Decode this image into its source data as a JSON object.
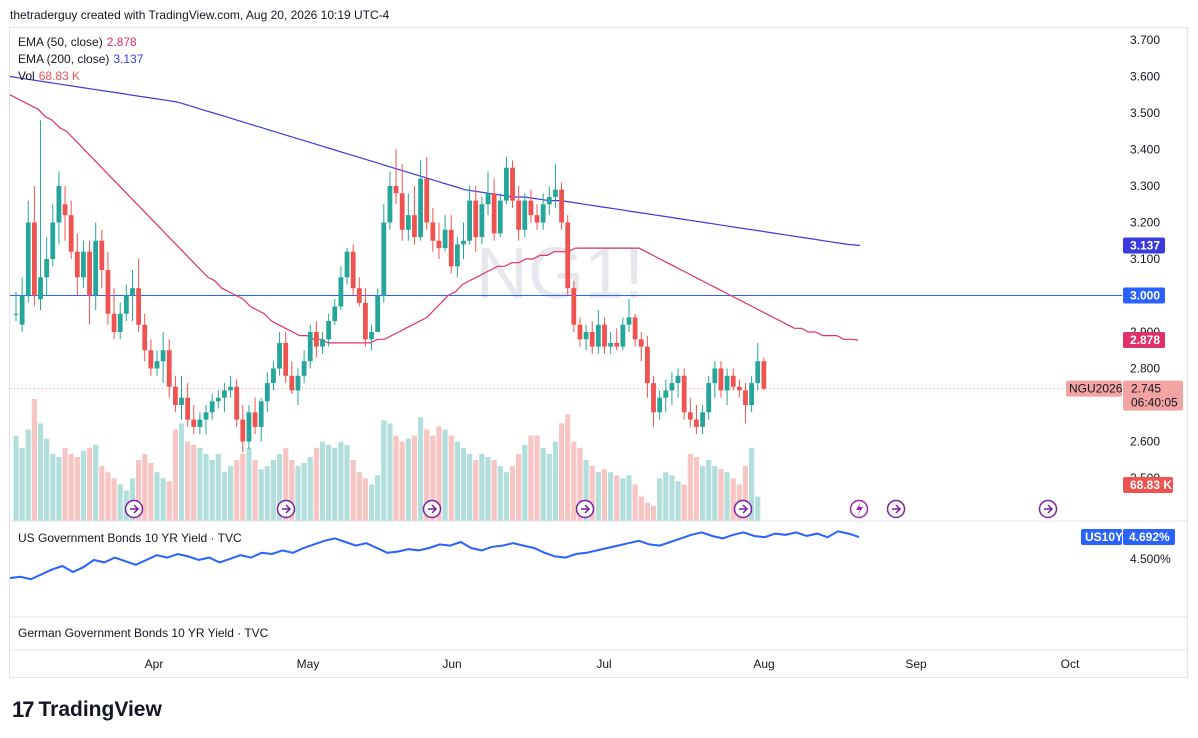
{
  "header": {
    "text": "thetraderguy created with TradingView.com, Aug 20, 2026 10:19 UTC-4"
  },
  "watermark": "NG1!",
  "legend": {
    "ema50": {
      "label": "EMA (50, close)",
      "value": "2.878",
      "color": "#e0306a"
    },
    "ema200": {
      "label": "EMA (200, close)",
      "value": "3.137",
      "color": "#3a3ae0"
    },
    "vol": {
      "label": "Vol",
      "value": "68.83 K",
      "color": "#ef5350"
    }
  },
  "price_axis": {
    "ticks": [
      "3.700",
      "3.600",
      "3.500",
      "3.400",
      "3.300",
      "3.200",
      "3.100",
      "3.000",
      "2.900",
      "2.800",
      "2.700",
      "2.600",
      "2.500"
    ]
  },
  "badges": {
    "ema200": "3.137",
    "level": "3.000",
    "ema50": "2.878",
    "symbol": "NGU2026",
    "price": "2.745",
    "countdown": "06:40:05",
    "vol": "68.83 K"
  },
  "pane2": {
    "title": "US Government Bonds 10 YR Yield · TVC",
    "symbol": "US10Y",
    "value": "4.692%",
    "tick": "4.500%"
  },
  "pane3": {
    "title": "German Government Bonds 10 YR Yield · TVC"
  },
  "time_axis": {
    "labels": [
      "Apr",
      "May",
      "Jun",
      "Jul",
      "Aug",
      "Sep",
      "Oct"
    ]
  },
  "brand": "TradingView",
  "colors": {
    "up": "#26a69a",
    "down": "#ef5350",
    "upVol": "#b2dfdb",
    "downVol": "#f7c5c3",
    "ema50": "#e0306a",
    "ema200": "#3a3ae0",
    "level": "#2962ff",
    "yield": "#2962ff"
  },
  "chart_data": {
    "type": "candlestick",
    "hline": 3.0,
    "ylim": [
      2.47,
      3.74
    ],
    "candles": [
      [
        2.95,
        3.01,
        2.93,
        2.95
      ],
      [
        2.92,
        3.05,
        2.9,
        3.0
      ],
      [
        3.0,
        3.26,
        2.98,
        3.2
      ],
      [
        3.2,
        3.3,
        2.97,
        3.0
      ],
      [
        2.99,
        3.48,
        2.96,
        3.05
      ],
      [
        3.05,
        3.16,
        3.0,
        3.1
      ],
      [
        3.1,
        3.25,
        3.08,
        3.2
      ],
      [
        3.2,
        3.34,
        3.14,
        3.3
      ],
      [
        3.25,
        3.3,
        3.15,
        3.22
      ],
      [
        3.22,
        3.26,
        3.1,
        3.12
      ],
      [
        3.12,
        3.17,
        3.0,
        3.05
      ],
      [
        3.05,
        3.15,
        3.02,
        3.12
      ],
      [
        3.12,
        3.15,
        2.92,
        3.0
      ],
      [
        3.0,
        3.2,
        2.96,
        3.15
      ],
      [
        3.15,
        3.18,
        3.02,
        3.07
      ],
      [
        3.07,
        3.12,
        2.92,
        2.95
      ],
      [
        2.95,
        3.02,
        2.88,
        2.9
      ],
      [
        2.9,
        2.98,
        2.88,
        2.95
      ],
      [
        2.95,
        3.03,
        2.93,
        3.0
      ],
      [
        3.0,
        3.07,
        2.93,
        3.02
      ],
      [
        3.02,
        3.1,
        2.9,
        2.92
      ],
      [
        2.92,
        2.95,
        2.82,
        2.85
      ],
      [
        2.85,
        2.88,
        2.78,
        2.8
      ],
      [
        2.8,
        2.85,
        2.78,
        2.82
      ],
      [
        2.82,
        2.9,
        2.76,
        2.85
      ],
      [
        2.85,
        2.88,
        2.72,
        2.75
      ],
      [
        2.75,
        2.78,
        2.68,
        2.7
      ],
      [
        2.7,
        2.78,
        2.66,
        2.72
      ],
      [
        2.72,
        2.76,
        2.64,
        2.66
      ],
      [
        2.66,
        2.7,
        2.62,
        2.64
      ],
      [
        2.64,
        2.68,
        2.62,
        2.66
      ],
      [
        2.66,
        2.7,
        2.62,
        2.68
      ],
      [
        2.68,
        2.73,
        2.66,
        2.71
      ],
      [
        2.71,
        2.74,
        2.69,
        2.72
      ],
      [
        2.72,
        2.76,
        2.68,
        2.74
      ],
      [
        2.74,
        2.78,
        2.72,
        2.75
      ],
      [
        2.75,
        2.77,
        2.64,
        2.66
      ],
      [
        2.66,
        2.7,
        2.57,
        2.6
      ],
      [
        2.6,
        2.7,
        2.58,
        2.68
      ],
      [
        2.68,
        2.72,
        2.62,
        2.64
      ],
      [
        2.64,
        2.72,
        2.6,
        2.71
      ],
      [
        2.71,
        2.79,
        2.68,
        2.76
      ],
      [
        2.76,
        2.82,
        2.74,
        2.8
      ],
      [
        2.8,
        2.9,
        2.78,
        2.87
      ],
      [
        2.87,
        2.9,
        2.76,
        2.78
      ],
      [
        2.78,
        2.82,
        2.73,
        2.74
      ],
      [
        2.74,
        2.8,
        2.7,
        2.78
      ],
      [
        2.78,
        2.85,
        2.76,
        2.82
      ],
      [
        2.82,
        2.92,
        2.8,
        2.9
      ],
      [
        2.9,
        2.93,
        2.83,
        2.86
      ],
      [
        2.86,
        2.9,
        2.84,
        2.88
      ],
      [
        2.88,
        2.95,
        2.86,
        2.93
      ],
      [
        2.93,
        2.99,
        2.92,
        2.97
      ],
      [
        2.97,
        3.08,
        2.96,
        3.05
      ],
      [
        3.05,
        3.13,
        3.03,
        3.12
      ],
      [
        3.12,
        3.14,
        3.0,
        3.02
      ],
      [
        3.02,
        3.05,
        2.97,
        2.98
      ],
      [
        2.98,
        3.02,
        2.86,
        2.88
      ],
      [
        2.88,
        2.92,
        2.85,
        2.9
      ],
      [
        2.9,
        3.02,
        2.9,
        3.0
      ],
      [
        3.0,
        3.25,
        2.98,
        3.2
      ],
      [
        3.2,
        3.34,
        3.18,
        3.3
      ],
      [
        3.3,
        3.4,
        3.25,
        3.28
      ],
      [
        3.28,
        3.36,
        3.15,
        3.18
      ],
      [
        3.18,
        3.28,
        3.15,
        3.22
      ],
      [
        3.22,
        3.3,
        3.14,
        3.16
      ],
      [
        3.16,
        3.37,
        3.15,
        3.32
      ],
      [
        3.32,
        3.38,
        3.18,
        3.2
      ],
      [
        3.2,
        3.24,
        3.12,
        3.15
      ],
      [
        3.15,
        3.2,
        3.1,
        3.13
      ],
      [
        3.13,
        3.22,
        3.12,
        3.18
      ],
      [
        3.18,
        3.22,
        3.06,
        3.08
      ],
      [
        3.08,
        3.16,
        3.05,
        3.14
      ],
      [
        3.14,
        3.2,
        3.1,
        3.15
      ],
      [
        3.15,
        3.3,
        3.14,
        3.26
      ],
      [
        3.26,
        3.3,
        3.12,
        3.16
      ],
      [
        3.16,
        3.27,
        3.14,
        3.25
      ],
      [
        3.25,
        3.34,
        3.22,
        3.28
      ],
      [
        3.28,
        3.32,
        3.15,
        3.17
      ],
      [
        3.17,
        3.28,
        3.16,
        3.26
      ],
      [
        3.26,
        3.38,
        3.25,
        3.35
      ],
      [
        3.35,
        3.37,
        3.24,
        3.26
      ],
      [
        3.26,
        3.3,
        3.15,
        3.18
      ],
      [
        3.18,
        3.28,
        3.16,
        3.26
      ],
      [
        3.26,
        3.29,
        3.2,
        3.22
      ],
      [
        3.22,
        3.25,
        3.18,
        3.2
      ],
      [
        3.2,
        3.28,
        3.18,
        3.25
      ],
      [
        3.25,
        3.3,
        3.22,
        3.27
      ],
      [
        3.27,
        3.36,
        3.24,
        3.29
      ],
      [
        3.29,
        3.31,
        3.18,
        3.2
      ],
      [
        3.2,
        3.22,
        3.0,
        3.02
      ],
      [
        3.02,
        3.04,
        2.9,
        2.92
      ],
      [
        2.92,
        2.94,
        2.86,
        2.88
      ],
      [
        2.88,
        2.92,
        2.85,
        2.9
      ],
      [
        2.9,
        2.93,
        2.84,
        2.86
      ],
      [
        2.86,
        2.96,
        2.84,
        2.92
      ],
      [
        2.92,
        2.94,
        2.84,
        2.86
      ],
      [
        2.86,
        2.9,
        2.84,
        2.87
      ],
      [
        2.87,
        2.91,
        2.85,
        2.86
      ],
      [
        2.86,
        2.94,
        2.85,
        2.92
      ],
      [
        2.92,
        2.99,
        2.9,
        2.94
      ],
      [
        2.94,
        2.95,
        2.86,
        2.88
      ],
      [
        2.88,
        2.9,
        2.82,
        2.86
      ],
      [
        2.86,
        2.89,
        2.72,
        2.76
      ],
      [
        2.76,
        2.78,
        2.64,
        2.68
      ],
      [
        2.68,
        2.74,
        2.66,
        2.72
      ],
      [
        2.72,
        2.77,
        2.68,
        2.74
      ],
      [
        2.74,
        2.79,
        2.7,
        2.76
      ],
      [
        2.76,
        2.8,
        2.72,
        2.78
      ],
      [
        2.78,
        2.8,
        2.66,
        2.68
      ],
      [
        2.68,
        2.72,
        2.64,
        2.66
      ],
      [
        2.66,
        2.7,
        2.62,
        2.64
      ],
      [
        2.64,
        2.7,
        2.62,
        2.68
      ],
      [
        2.68,
        2.78,
        2.66,
        2.76
      ],
      [
        2.76,
        2.82,
        2.72,
        2.8
      ],
      [
        2.8,
        2.82,
        2.72,
        2.74
      ],
      [
        2.74,
        2.8,
        2.7,
        2.78
      ],
      [
        2.78,
        2.8,
        2.74,
        2.75
      ],
      [
        2.75,
        2.77,
        2.72,
        2.74
      ],
      [
        2.74,
        2.76,
        2.65,
        2.7
      ],
      [
        2.7,
        2.78,
        2.68,
        2.76
      ],
      [
        2.76,
        2.87,
        2.74,
        2.82
      ],
      [
        2.82,
        2.83,
        2.74,
        2.745
      ]
    ],
    "volume": [
      0.28,
      0.24,
      0.3,
      0.4,
      0.32,
      0.27,
      0.22,
      0.21,
      0.24,
      0.22,
      0.21,
      0.23,
      0.24,
      0.25,
      0.18,
      0.16,
      0.14,
      0.12,
      0.1,
      0.14,
      0.2,
      0.22,
      0.19,
      0.16,
      0.14,
      0.13,
      0.3,
      0.32,
      0.26,
      0.25,
      0.24,
      0.22,
      0.2,
      0.22,
      0.16,
      0.18,
      0.2,
      0.22,
      0.24,
      0.2,
      0.17,
      0.18,
      0.2,
      0.22,
      0.24,
      0.2,
      0.18,
      0.19,
      0.21,
      0.24,
      0.26,
      0.25,
      0.24,
      0.26,
      0.25,
      0.2,
      0.16,
      0.14,
      0.12,
      0.15,
      0.33,
      0.32,
      0.28,
      0.26,
      0.27,
      0.28,
      0.34,
      0.3,
      0.28,
      0.31,
      0.3,
      0.28,
      0.26,
      0.24,
      0.22,
      0.2,
      0.22,
      0.21,
      0.2,
      0.18,
      0.16,
      0.18,
      0.22,
      0.25,
      0.28,
      0.28,
      0.24,
      0.22,
      0.26,
      0.32,
      0.35,
      0.26,
      0.24,
      0.2,
      0.18,
      0.16,
      0.17,
      0.16,
      0.15,
      0.14,
      0.15,
      0.12,
      0.08,
      0.06,
      0.05,
      0.14,
      0.16,
      0.15,
      0.13,
      0.12,
      0.22,
      0.21,
      0.18,
      0.2,
      0.18,
      0.17,
      0.16,
      0.14,
      0.12,
      0.18,
      0.24,
      0.08
    ],
    "ema50": [
      3.55,
      3.54,
      3.53,
      3.52,
      3.51,
      3.49,
      3.48,
      3.46,
      3.45,
      3.43,
      3.41,
      3.39,
      3.37,
      3.35,
      3.33,
      3.31,
      3.29,
      3.27,
      3.25,
      3.23,
      3.21,
      3.19,
      3.17,
      3.15,
      3.13,
      3.11,
      3.09,
      3.07,
      3.05,
      3.04,
      3.02,
      3.01,
      3.0,
      2.99,
      2.97,
      2.96,
      2.95,
      2.93,
      2.92,
      2.91,
      2.9,
      2.89,
      2.89,
      2.88,
      2.88,
      2.87,
      2.87,
      2.87,
      2.87,
      2.87,
      2.87,
      2.87,
      2.88,
      2.88,
      2.89,
      2.9,
      2.91,
      2.92,
      2.93,
      2.94,
      2.96,
      2.98,
      3.0,
      3.01,
      3.03,
      3.04,
      3.05,
      3.06,
      3.07,
      3.08,
      3.08,
      3.09,
      3.09,
      3.1,
      3.1,
      3.11,
      3.11,
      3.12,
      3.12,
      3.12,
      3.13,
      3.13,
      3.13,
      3.13,
      3.13,
      3.13,
      3.13,
      3.13,
      3.13,
      3.13,
      3.12,
      3.11,
      3.1,
      3.09,
      3.08,
      3.07,
      3.06,
      3.05,
      3.04,
      3.03,
      3.02,
      3.01,
      3.0,
      2.99,
      2.98,
      2.97,
      2.96,
      2.95,
      2.94,
      2.93,
      2.92,
      2.91,
      2.91,
      2.9,
      2.9,
      2.89,
      2.89,
      2.89,
      2.88,
      2.88,
      2.878
    ],
    "ema200": [
      3.6,
      3.595,
      3.59,
      3.585,
      3.58,
      3.575,
      3.57,
      3.565,
      3.56,
      3.555,
      3.55,
      3.545,
      3.54,
      3.535,
      3.53,
      3.52,
      3.51,
      3.5,
      3.49,
      3.48,
      3.47,
      3.46,
      3.45,
      3.44,
      3.43,
      3.42,
      3.41,
      3.4,
      3.39,
      3.38,
      3.37,
      3.36,
      3.35,
      3.34,
      3.33,
      3.32,
      3.31,
      3.3,
      3.29,
      3.285,
      3.28,
      3.275,
      3.27,
      3.27,
      3.265,
      3.26,
      3.26,
      3.255,
      3.25,
      3.245,
      3.24,
      3.235,
      3.23,
      3.225,
      3.22,
      3.215,
      3.21,
      3.205,
      3.2,
      3.195,
      3.19,
      3.185,
      3.18,
      3.175,
      3.17,
      3.165,
      3.16,
      3.155,
      3.15,
      3.145,
      3.14,
      3.137
    ],
    "yield": [
      4.35,
      4.36,
      4.34,
      4.38,
      4.42,
      4.45,
      4.4,
      4.44,
      4.5,
      4.48,
      4.52,
      4.49,
      4.46,
      4.5,
      4.54,
      4.52,
      4.55,
      4.53,
      4.5,
      4.52,
      4.48,
      4.51,
      4.54,
      4.52,
      4.56,
      4.55,
      4.58,
      4.56,
      4.6,
      4.63,
      4.66,
      4.68,
      4.65,
      4.62,
      4.64,
      4.6,
      4.56,
      4.57,
      4.59,
      4.58,
      4.6,
      4.63,
      4.62,
      4.65,
      4.6,
      4.58,
      4.61,
      4.62,
      4.64,
      4.62,
      4.6,
      4.56,
      4.53,
      4.52,
      4.55,
      4.56,
      4.58,
      4.6,
      4.62,
      4.64,
      4.66,
      4.63,
      4.62,
      4.65,
      4.68,
      4.71,
      4.73,
      4.7,
      4.68,
      4.71,
      4.73,
      4.7,
      4.69,
      4.72,
      4.71,
      4.73,
      4.7,
      4.72,
      4.69,
      4.74,
      4.72,
      4.692
    ]
  }
}
